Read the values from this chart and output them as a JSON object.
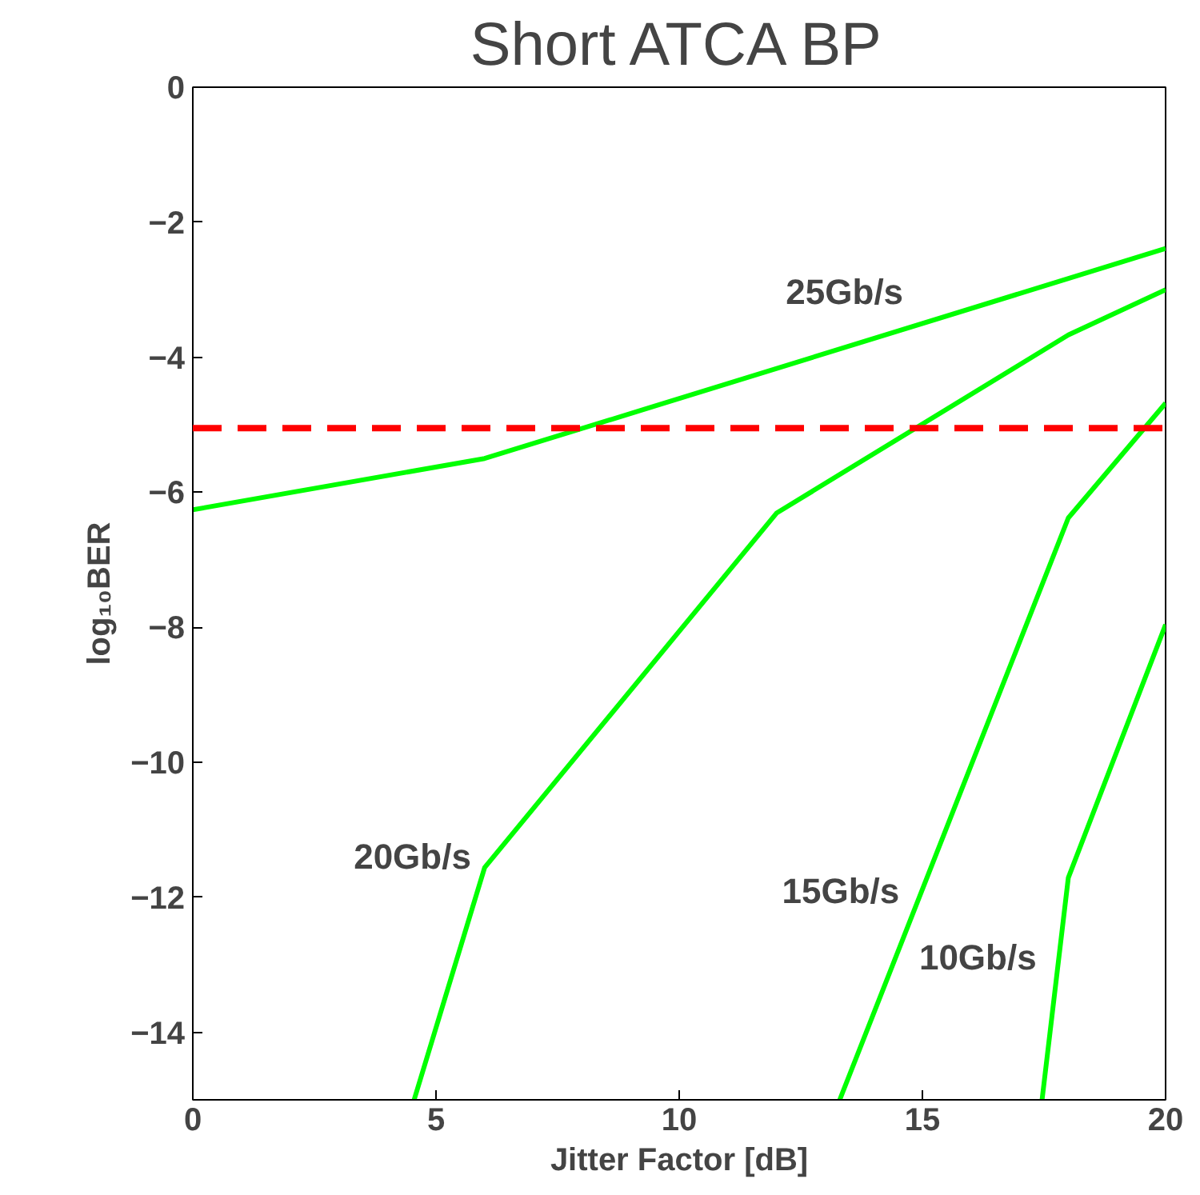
{
  "chart_data": {
    "type": "line",
    "title": "Short ATCA BP",
    "xlabel": "Jitter Factor [dB]",
    "ylabel": "log₁₀BER",
    "xlim": [
      0,
      20
    ],
    "ylim": [
      -15,
      0
    ],
    "xticks": [
      0,
      5,
      10,
      15,
      20
    ],
    "yticks": [
      0,
      -2,
      -4,
      -6,
      -8,
      -10,
      -12,
      -14
    ],
    "grid": false,
    "series": [
      {
        "name": "25Gb/s",
        "color": "#00ff00",
        "x": [
          0,
          6,
          20
        ],
        "values": [
          -6.26,
          -5.5,
          -2.39
        ]
      },
      {
        "name": "20Gb/s",
        "color": "#00ff00",
        "x": [
          4.55,
          6,
          12,
          18,
          20
        ],
        "values": [
          -15,
          -11.56,
          -6.31,
          -3.67,
          -3.0
        ]
      },
      {
        "name": "15Gb/s",
        "color": "#00ff00",
        "x": [
          13.3,
          18,
          20
        ],
        "values": [
          -15,
          -6.38,
          -4.68
        ]
      },
      {
        "name": "10Gb/s",
        "color": "#00ff00",
        "x": [
          17.46,
          18,
          20
        ],
        "values": [
          -15,
          -11.71,
          -7.96
        ]
      }
    ],
    "ref_lines": [
      {
        "axis": "y",
        "value": -5.05,
        "color": "#ff0000",
        "line_style": "dashed"
      }
    ]
  }
}
